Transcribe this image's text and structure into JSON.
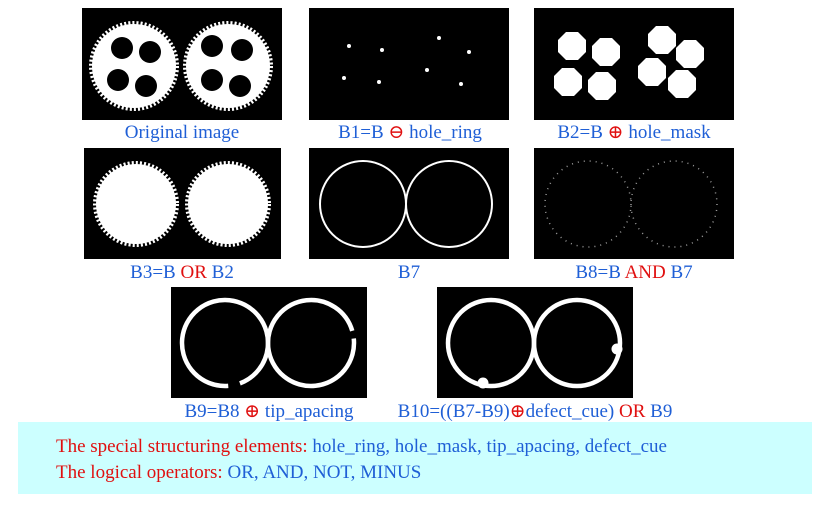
{
  "captions": {
    "original": "Original image",
    "b1_pre": "B1=B ",
    "b1_op": "⊖",
    "b1_post": " hole_ring",
    "b2_pre": "B2=B ",
    "b2_op": "⊕",
    "b2_post": " hole_mask",
    "b3_pre": "B3=B ",
    "b3_op": "OR",
    "b3_post": " B2",
    "b7": "B7",
    "b8_pre": "B8=B ",
    "b8_op": "AND",
    "b8_post": " B7",
    "b9_pre": "B9=B8 ",
    "b9_op": "⊕",
    "b9_post": " tip_apacing",
    "b10_pre": "B10=((B7-B9)",
    "b10_op": "⊕",
    "b10_mid": "defect_cue)",
    "b10_or": " OR",
    "b10_post": " B9"
  },
  "notes": {
    "line1_label": "The special structuring elements:",
    "line1_value": " hole_ring, hole_mask, tip_apacing, defect_cue",
    "line2_label": "The logical operators:",
    "line2_value": " OR, AND, NOT, MINUS"
  },
  "colors": {
    "blue": "#1f5fd6",
    "red": "#e01010",
    "note_bg": "#ccffff"
  }
}
